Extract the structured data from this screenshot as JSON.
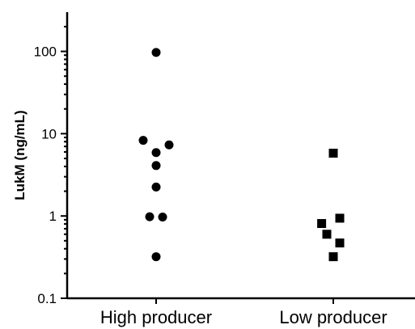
{
  "chart_data": {
    "type": "scatter",
    "title": "",
    "xlabel": "",
    "ylabel": "LukM (ng/mL)",
    "yscale": "log",
    "ylim": [
      0.1,
      300
    ],
    "yticks": [
      {
        "value": 0.1,
        "label": "0.1"
      },
      {
        "value": 1,
        "label": "1"
      },
      {
        "value": 10,
        "label": "10"
      },
      {
        "value": 100,
        "label": "100"
      }
    ],
    "categories": [
      "High producer",
      "Low producer"
    ],
    "grid": false,
    "legend": "none",
    "series": [
      {
        "category": "High producer",
        "marker": "circle",
        "color": "#000000",
        "points": [
          {
            "offset": 0,
            "y": 97
          },
          {
            "offset": -1,
            "y": 8.3
          },
          {
            "offset": 1,
            "y": 7.3
          },
          {
            "offset": 0,
            "y": 5.9
          },
          {
            "offset": 0,
            "y": 4.1
          },
          {
            "offset": 0,
            "y": 2.25
          },
          {
            "offset": -0.5,
            "y": 0.98
          },
          {
            "offset": 0.5,
            "y": 0.97
          },
          {
            "offset": 0,
            "y": 0.32
          }
        ]
      },
      {
        "category": "Low producer",
        "marker": "square",
        "color": "#000000",
        "points": [
          {
            "offset": 0,
            "y": 5.8
          },
          {
            "offset": 0.5,
            "y": 0.94
          },
          {
            "offset": -0.9,
            "y": 0.81
          },
          {
            "offset": -0.5,
            "y": 0.6
          },
          {
            "offset": 0.5,
            "y": 0.47
          },
          {
            "offset": 0,
            "y": 0.32
          }
        ]
      }
    ]
  }
}
